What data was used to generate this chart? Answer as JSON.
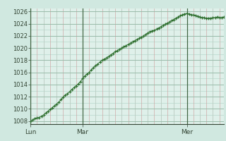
{
  "background_color": "#d0e8e0",
  "plot_bg_color": "#dff0ea",
  "grid_color": "#b8d8cc",
  "grid_color_v_red": "#c8a8a8",
  "vline_color": "#446644",
  "line_color": "#2d6e2d",
  "marker_color": "#2d6e2d",
  "ylim": [
    1007.5,
    1026.5
  ],
  "yticks": [
    1008,
    1010,
    1012,
    1014,
    1016,
    1018,
    1020,
    1022,
    1024,
    1026
  ],
  "xtick_labels": [
    "Lun",
    "Mar",
    "Mer"
  ],
  "xtick_positions": [
    0,
    24,
    72
  ],
  "vline_positions": [
    0,
    24,
    72
  ],
  "x_values": [
    0,
    1,
    2,
    3,
    4,
    5,
    6,
    7,
    8,
    9,
    10,
    11,
    12,
    13,
    14,
    15,
    16,
    17,
    18,
    19,
    20,
    21,
    22,
    23,
    24,
    25,
    26,
    27,
    28,
    29,
    30,
    31,
    32,
    33,
    34,
    35,
    36,
    37,
    38,
    39,
    40,
    41,
    42,
    43,
    44,
    45,
    46,
    47,
    48,
    49,
    50,
    51,
    52,
    53,
    54,
    55,
    56,
    57,
    58,
    59,
    60,
    61,
    62,
    63,
    64,
    65,
    66,
    67,
    68,
    69,
    70,
    71,
    72,
    73,
    74,
    75,
    76,
    77,
    78,
    79,
    80,
    81,
    82,
    83,
    84,
    85,
    86,
    87,
    88,
    89
  ],
  "y_values": [
    1008.0,
    1008.2,
    1008.4,
    1008.5,
    1008.6,
    1008.8,
    1009.0,
    1009.3,
    1009.6,
    1009.9,
    1010.2,
    1010.5,
    1010.8,
    1011.1,
    1011.5,
    1011.9,
    1012.3,
    1012.5,
    1012.8,
    1013.2,
    1013.5,
    1013.8,
    1014.1,
    1014.5,
    1015.0,
    1015.4,
    1015.7,
    1016.0,
    1016.4,
    1016.8,
    1017.1,
    1017.4,
    1017.7,
    1018.0,
    1018.2,
    1018.4,
    1018.6,
    1018.9,
    1019.1,
    1019.4,
    1019.6,
    1019.8,
    1020.0,
    1020.2,
    1020.4,
    1020.6,
    1020.8,
    1021.0,
    1021.2,
    1021.4,
    1021.6,
    1021.8,
    1022.0,
    1022.2,
    1022.5,
    1022.7,
    1022.8,
    1022.9,
    1023.1,
    1023.3,
    1023.5,
    1023.7,
    1023.9,
    1024.1,
    1024.3,
    1024.5,
    1024.7,
    1024.9,
    1025.1,
    1025.3,
    1025.5,
    1025.6,
    1025.7,
    1025.6,
    1025.5,
    1025.4,
    1025.3,
    1025.2,
    1025.1,
    1025.0,
    1025.0,
    1024.9,
    1024.9,
    1024.9,
    1025.0,
    1025.0,
    1025.1,
    1025.0,
    1025.0,
    1025.1
  ]
}
